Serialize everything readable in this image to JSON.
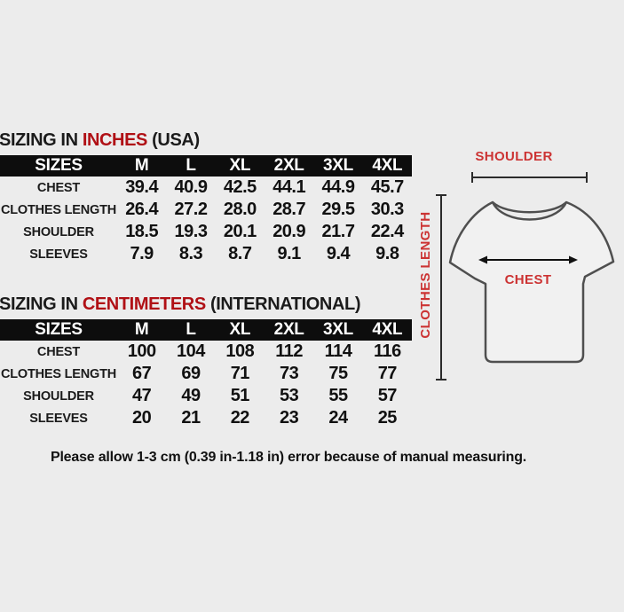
{
  "page": {
    "background": "#ececec"
  },
  "tables": [
    {
      "title_prefix": "SIZING IN",
      "title_unit": "INCHES",
      "title_suffix": "(USA)",
      "headers": [
        "SIZES",
        "M",
        "L",
        "XL",
        "2XL",
        "3XL",
        "4XL"
      ],
      "rows": [
        {
          "label": "CHEST",
          "values": [
            "39.4",
            "40.9",
            "42.5",
            "44.1",
            "44.9",
            "45.7"
          ]
        },
        {
          "label": "CLOTHES LENGTH",
          "values": [
            "26.4",
            "27.2",
            "28.0",
            "28.7",
            "29.5",
            "30.3"
          ]
        },
        {
          "label": "SHOULDER",
          "values": [
            "18.5",
            "19.3",
            "20.1",
            "20.9",
            "21.7",
            "22.4"
          ]
        },
        {
          "label": "SLEEVES",
          "values": [
            "7.9",
            "8.3",
            "8.7",
            "9.1",
            "9.4",
            "9.8"
          ]
        }
      ]
    },
    {
      "title_prefix": "SIZING IN",
      "title_unit": "CENTIMETERS",
      "title_suffix": "(INTERNATIONAL)",
      "headers": [
        "SIZES",
        "M",
        "L",
        "XL",
        "2XL",
        "3XL",
        "4XL"
      ],
      "rows": [
        {
          "label": "CHEST",
          "values": [
            "100",
            "104",
            "108",
            "112",
            "114",
            "116"
          ]
        },
        {
          "label": "CLOTHES LENGTH",
          "values": [
            "67",
            "69",
            "71",
            "73",
            "75",
            "77"
          ]
        },
        {
          "label": "SHOULDER",
          "values": [
            "47",
            "49",
            "51",
            "53",
            "55",
            "57"
          ]
        },
        {
          "label": "SLEEVES",
          "values": [
            "20",
            "21",
            "22",
            "23",
            "24",
            "25"
          ]
        }
      ]
    }
  ],
  "diagram": {
    "shoulder_label": "SHOULDER",
    "chest_label": "CHEST",
    "clothes_length_label": "CLOTHES LENGTH"
  },
  "note": "Please allow 1-3 cm (0.39 in-1.18 in) error because of manual measuring.",
  "colors": {
    "title_red": "#b01015",
    "diagram_red": "#cc3333",
    "header_bar": "#0d0d0d",
    "background": "#ececec"
  }
}
